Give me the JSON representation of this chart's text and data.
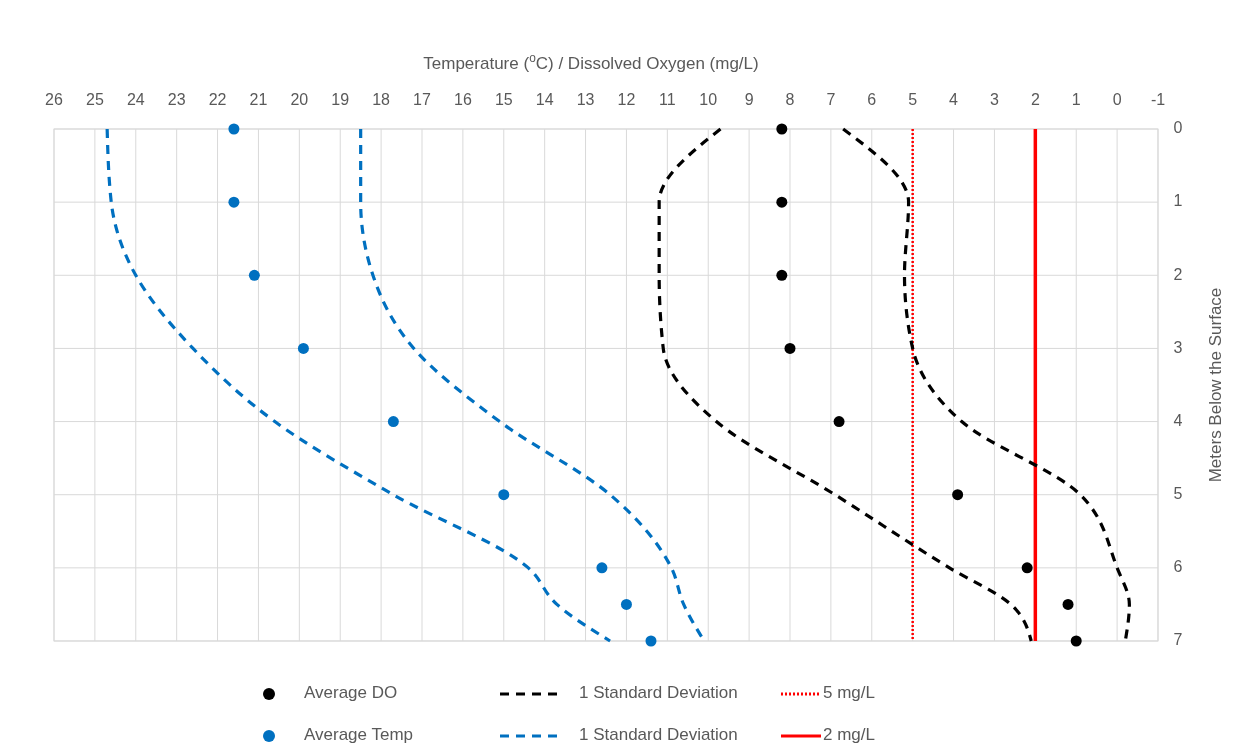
{
  "chart_data": {
    "type": "scatter",
    "xlabel": "Temperature ($^{o}$C) / Dissolved Oxygen (mg/L)",
    "ylabel": "Meters Below the Surface",
    "xlim": [
      26,
      -1
    ],
    "xticks": [
      26,
      25,
      24,
      23,
      22,
      21,
      20,
      19,
      18,
      17,
      16,
      15,
      14,
      13,
      12,
      11,
      10,
      9,
      8,
      7,
      6,
      5,
      4,
      3,
      2,
      1,
      0,
      -1
    ],
    "ylim": [
      7,
      0
    ],
    "yticks": [
      0,
      1,
      2,
      3,
      4,
      5,
      6,
      7
    ],
    "grid": true,
    "legend": "bottom",
    "marker": "circle",
    "series": [
      {
        "name": "Average DO",
        "color": "#000000",
        "x": [
          8.2,
          8.2,
          8.2,
          8.0,
          6.8,
          3.9,
          2.2,
          1.2,
          1.0
        ],
        "values": [
          0,
          1,
          2,
          3,
          4,
          5,
          6,
          6.5,
          7
        ]
      },
      {
        "name": "Average Temp",
        "color": "#0070c0",
        "x": [
          21.6,
          21.6,
          21.1,
          19.9,
          17.7,
          15.0,
          12.6,
          12.0,
          11.4
        ],
        "values": [
          0,
          1,
          2,
          3,
          4,
          5,
          6,
          6.5,
          7
        ]
      },
      {
        "name": "1 Standard Deviation",
        "type": "line",
        "line_style": "dashed",
        "marker": "none",
        "color": "#000000",
        "x": [
          9.7,
          11.2,
          11.2,
          11.1,
          9.8,
          6.9,
          4.1,
          2.6,
          2.1
        ],
        "values": [
          0,
          1,
          2,
          3,
          4,
          5,
          6,
          6.5,
          7
        ]
      },
      {
        "name": "1 Standard Deviation",
        "type": "line",
        "line_style": "dashed",
        "marker": "none",
        "color": "#0070c0",
        "x": [
          24.7,
          24.6,
          24.0,
          22.6,
          20.6,
          17.7,
          14.4,
          13.7,
          12.4
        ],
        "values": [
          0,
          1,
          2,
          3,
          4,
          5,
          6,
          6.5,
          7
        ]
      },
      {
        "type": "line",
        "line_style": "dashed",
        "marker": "none",
        "color": "#000000",
        "x": [
          6.7,
          5.1,
          5.2,
          5.0,
          3.8,
          0.9,
          0.0,
          -0.3,
          -0.2
        ],
        "values": [
          0,
          1,
          2,
          3,
          4,
          5,
          6,
          6.5,
          7
        ]
      },
      {
        "type": "line",
        "line_style": "dashed",
        "marker": "none",
        "color": "#0070c0",
        "x": [
          18.5,
          18.5,
          18.2,
          17.2,
          15.1,
          12.4,
          10.9,
          10.6,
          10.1
        ],
        "values": [
          0,
          1,
          2,
          3,
          4,
          5,
          6,
          6.5,
          7
        ]
      }
    ],
    "ref_lines": [
      {
        "axis": "x",
        "value": 5,
        "label": "5 mg/L",
        "color": "#ff0000",
        "line_style": "dotted"
      },
      {
        "axis": "x",
        "value": 2,
        "label": "2 mg/L",
        "color": "#ff0000",
        "line_style": "solid"
      }
    ]
  }
}
